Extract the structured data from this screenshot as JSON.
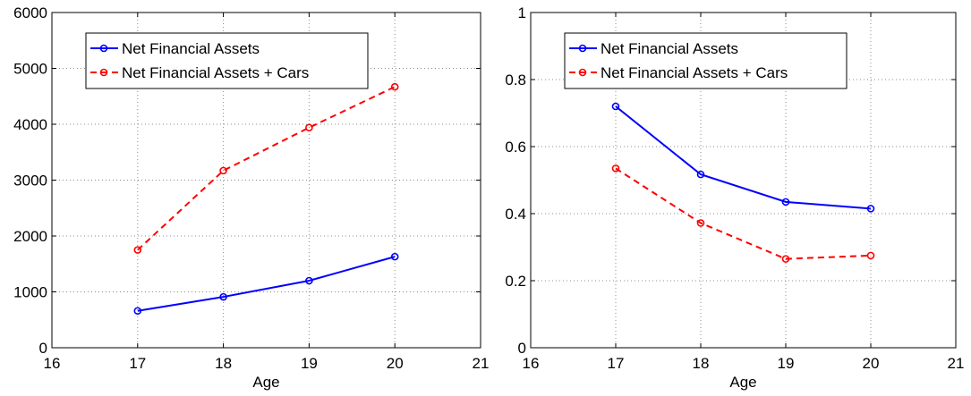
{
  "chart_data": [
    {
      "type": "line",
      "xlabel": "Age",
      "ylabel": "",
      "xlim": [
        16,
        21
      ],
      "ylim": [
        0,
        6000
      ],
      "xticks": [
        "16",
        "17",
        "18",
        "19",
        "20",
        "21"
      ],
      "yticks": [
        "0",
        "1000",
        "2000",
        "3000",
        "4000",
        "5000",
        "6000"
      ],
      "grid": true,
      "legend_position": "top-left",
      "x": [
        17,
        18,
        19,
        20
      ],
      "series": [
        {
          "name": "Net Financial Assets",
          "values": [
            660,
            910,
            1200,
            1630
          ],
          "color": "#0000ff",
          "style": "solid"
        },
        {
          "name": "Net Financial Assets + Cars",
          "values": [
            1750,
            3170,
            3940,
            4670
          ],
          "color": "#ff0000",
          "style": "dashed"
        }
      ]
    },
    {
      "type": "line",
      "xlabel": "Age",
      "ylabel": "",
      "xlim": [
        16,
        21
      ],
      "ylim": [
        0,
        1
      ],
      "xticks": [
        "16",
        "17",
        "18",
        "19",
        "20",
        "21"
      ],
      "yticks": [
        "0",
        "0.2",
        "0.4",
        "0.6",
        "0.8",
        "1"
      ],
      "grid": true,
      "legend_position": "top-left",
      "x": [
        17,
        18,
        19,
        20
      ],
      "series": [
        {
          "name": "Net Financial Assets",
          "values": [
            0.72,
            0.517,
            0.435,
            0.415
          ],
          "color": "#0000ff",
          "style": "solid"
        },
        {
          "name": "Net Financial Assets + Cars",
          "values": [
            0.535,
            0.372,
            0.265,
            0.275
          ],
          "color": "#ff0000",
          "style": "dashed"
        }
      ]
    }
  ]
}
